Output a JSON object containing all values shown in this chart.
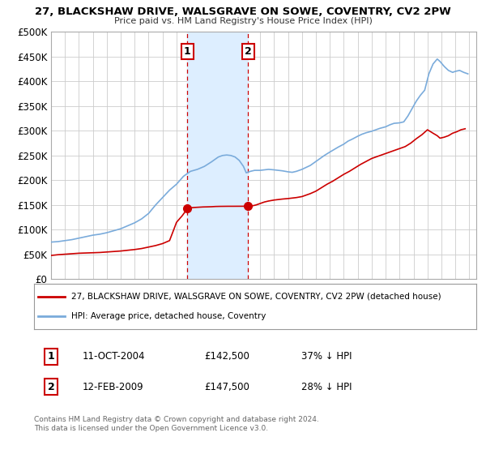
{
  "title": "27, BLACKSHAW DRIVE, WALSGRAVE ON SOWE, COVENTRY, CV2 2PW",
  "subtitle": "Price paid vs. HM Land Registry's House Price Index (HPI)",
  "legend_line1": "27, BLACKSHAW DRIVE, WALSGRAVE ON SOWE, COVENTRY, CV2 2PW (detached house)",
  "legend_line2": "HPI: Average price, detached house, Coventry",
  "footnote1": "Contains HM Land Registry data © Crown copyright and database right 2024.",
  "footnote2": "This data is licensed under the Open Government Licence v3.0.",
  "marker1_label": "1",
  "marker1_date": "11-OCT-2004",
  "marker1_price": "£142,500",
  "marker1_hpi": "37% ↓ HPI",
  "marker2_label": "2",
  "marker2_date": "12-FEB-2009",
  "marker2_price": "£147,500",
  "marker2_hpi": "28% ↓ HPI",
  "red_color": "#cc0000",
  "blue_color": "#7aabdb",
  "shade_color": "#ddeeff",
  "vline_color": "#cc0000",
  "grid_color": "#cccccc",
  "background_color": "#ffffff",
  "ylim": [
    0,
    500000
  ],
  "yticks": [
    0,
    50000,
    100000,
    150000,
    200000,
    250000,
    300000,
    350000,
    400000,
    450000,
    500000
  ],
  "ytick_labels": [
    "£0",
    "£50K",
    "£100K",
    "£150K",
    "£200K",
    "£250K",
    "£300K",
    "£350K",
    "£400K",
    "£450K",
    "£500K"
  ],
  "xlim_start": 1995.0,
  "xlim_end": 2025.5,
  "transaction1_x": 2004.78,
  "transaction1_y": 142500,
  "transaction2_x": 2009.12,
  "transaction2_y": 147500,
  "vline1_x": 2004.78,
  "vline2_x": 2009.12,
  "hpi_years": [
    1995.0,
    1995.5,
    1996.0,
    1996.5,
    1997.0,
    1997.5,
    1998.0,
    1998.5,
    1999.0,
    1999.5,
    2000.0,
    2000.5,
    2001.0,
    2001.5,
    2002.0,
    2002.5,
    2003.0,
    2003.5,
    2004.0,
    2004.5,
    2005.0,
    2005.5,
    2006.0,
    2006.5,
    2007.0,
    2007.3,
    2007.6,
    2007.9,
    2008.2,
    2008.5,
    2008.8,
    2009.0,
    2009.3,
    2009.6,
    2010.0,
    2010.3,
    2010.6,
    2011.0,
    2011.3,
    2011.6,
    2012.0,
    2012.3,
    2012.6,
    2013.0,
    2013.3,
    2013.6,
    2014.0,
    2014.3,
    2014.6,
    2015.0,
    2015.3,
    2015.6,
    2016.0,
    2016.3,
    2016.6,
    2017.0,
    2017.3,
    2017.6,
    2018.0,
    2018.3,
    2018.6,
    2019.0,
    2019.3,
    2019.6,
    2020.0,
    2020.3,
    2020.6,
    2020.9,
    2021.2,
    2021.5,
    2021.8,
    2022.1,
    2022.4,
    2022.7,
    2022.9,
    2023.2,
    2023.5,
    2023.8,
    2024.0,
    2024.3,
    2024.6,
    2024.9
  ],
  "hpi_values": [
    75000,
    76000,
    78000,
    80000,
    83000,
    86000,
    89000,
    91000,
    94000,
    98000,
    102000,
    108000,
    114000,
    122000,
    133000,
    150000,
    165000,
    180000,
    192000,
    208000,
    218000,
    222000,
    228000,
    237000,
    247000,
    250000,
    251000,
    250000,
    247000,
    240000,
    228000,
    215000,
    218000,
    220000,
    220000,
    221000,
    222000,
    221000,
    220000,
    219000,
    217000,
    216000,
    218000,
    222000,
    226000,
    230000,
    238000,
    244000,
    250000,
    257000,
    262000,
    267000,
    273000,
    279000,
    283000,
    289000,
    293000,
    296000,
    299000,
    302000,
    305000,
    308000,
    312000,
    315000,
    316000,
    318000,
    330000,
    345000,
    360000,
    372000,
    382000,
    415000,
    435000,
    445000,
    440000,
    430000,
    422000,
    418000,
    420000,
    422000,
    418000,
    415000
  ],
  "red_years": [
    1995.0,
    1995.5,
    1996.0,
    1996.5,
    1997.0,
    1997.5,
    1998.0,
    1998.5,
    1999.0,
    1999.5,
    2000.0,
    2000.5,
    2001.0,
    2001.5,
    2002.0,
    2002.5,
    2003.0,
    2003.5,
    2003.8,
    2004.0,
    2004.4,
    2004.78,
    2004.9,
    2005.1,
    2005.3,
    2005.6,
    2005.9,
    2006.2,
    2006.5,
    2006.8,
    2007.1,
    2007.4,
    2007.7,
    2007.9,
    2008.1,
    2008.4,
    2008.7,
    2009.0,
    2009.12,
    2009.4,
    2009.7,
    2010.0,
    2010.3,
    2010.6,
    2011.0,
    2011.3,
    2011.6,
    2012.0,
    2012.3,
    2012.6,
    2013.0,
    2013.3,
    2013.6,
    2014.0,
    2014.4,
    2014.8,
    2015.2,
    2015.6,
    2016.0,
    2016.4,
    2016.8,
    2017.2,
    2017.6,
    2018.0,
    2018.4,
    2018.8,
    2019.2,
    2019.6,
    2020.0,
    2020.4,
    2020.8,
    2021.2,
    2021.6,
    2022.0,
    2022.4,
    2022.7,
    2022.9,
    2023.2,
    2023.5,
    2023.8,
    2024.1,
    2024.4,
    2024.7
  ],
  "red_values": [
    48000,
    49500,
    50500,
    51500,
    52500,
    53000,
    53500,
    54000,
    55000,
    56000,
    57000,
    58500,
    60000,
    62000,
    65000,
    68000,
    72000,
    78000,
    100000,
    115000,
    128000,
    142500,
    144000,
    144500,
    145000,
    145500,
    146000,
    146200,
    146500,
    147000,
    147200,
    147300,
    147400,
    147400,
    147400,
    147450,
    147450,
    147500,
    147500,
    148000,
    150000,
    153000,
    156000,
    158000,
    160000,
    161000,
    162000,
    163000,
    164000,
    165000,
    167000,
    170000,
    173000,
    178000,
    185000,
    192000,
    198000,
    205000,
    212000,
    218000,
    225000,
    232000,
    238000,
    244000,
    248000,
    252000,
    256000,
    260000,
    264000,
    268000,
    275000,
    284000,
    292000,
    302000,
    295000,
    290000,
    285000,
    287000,
    290000,
    295000,
    298000,
    302000,
    304000
  ]
}
